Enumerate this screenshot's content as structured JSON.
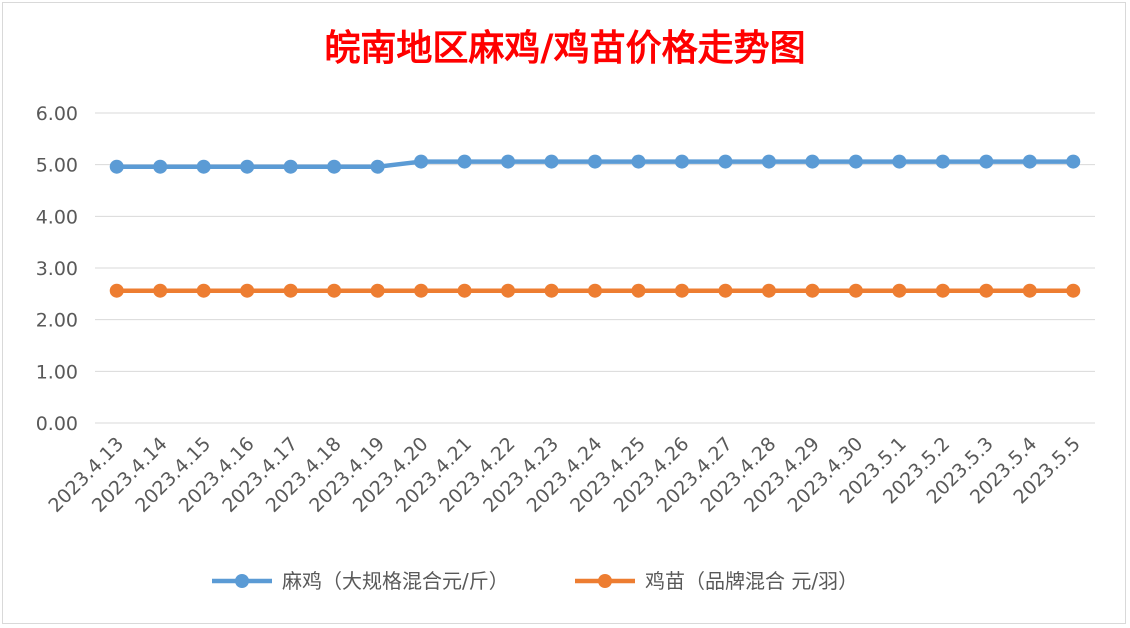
{
  "chart_data": {
    "type": "line",
    "title": "皖南地区麻鸡/鸡苗价格走势图",
    "categories": [
      "2023.4.13",
      "2023.4.14",
      "2023.4.15",
      "2023.4.16",
      "2023.4.17",
      "2023.4.18",
      "2023.4.19",
      "2023.4.20",
      "2023.4.21",
      "2023.4.22",
      "2023.4.23",
      "2023.4.24",
      "2023.4.25",
      "2023.4.26",
      "2023.4.27",
      "2023.4.28",
      "2023.4.29",
      "2023.4.30",
      "2023.5.1",
      "2023.5.2",
      "2023.5.3",
      "2023.5.4",
      "2023.5.5"
    ],
    "series": [
      {
        "name": "麻鸡（大规格混合元/斤）",
        "color": "#5b9bd5",
        "values": [
          4.96,
          4.96,
          4.96,
          4.96,
          4.96,
          4.96,
          4.96,
          5.06,
          5.06,
          5.06,
          5.06,
          5.06,
          5.06,
          5.06,
          5.06,
          5.06,
          5.06,
          5.06,
          5.06,
          5.06,
          5.06,
          5.06,
          5.06
        ]
      },
      {
        "name": "鸡苗（品牌混合 元/羽）",
        "color": "#ed7d31",
        "values": [
          2.56,
          2.56,
          2.56,
          2.56,
          2.56,
          2.56,
          2.56,
          2.56,
          2.56,
          2.56,
          2.56,
          2.56,
          2.56,
          2.56,
          2.56,
          2.56,
          2.56,
          2.56,
          2.56,
          2.56,
          2.56,
          2.56,
          2.56
        ]
      }
    ],
    "ylim": [
      0,
      6
    ],
    "yticks": [
      "0.00",
      "1.00",
      "2.00",
      "3.00",
      "4.00",
      "5.00",
      "6.00"
    ],
    "grid": true,
    "legend": "bottom",
    "title_color": "#ff0000"
  }
}
